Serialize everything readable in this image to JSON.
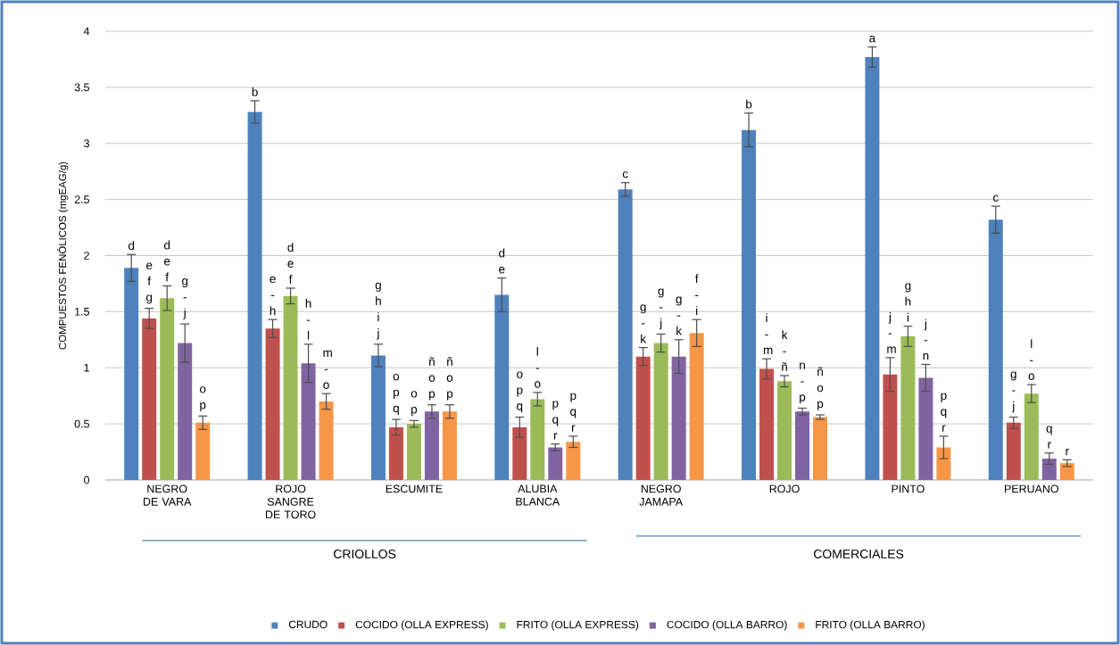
{
  "chart_data": {
    "type": "bar",
    "ylabel": "COMPUESTOS FENÓLICOS (mgEAG/g)",
    "categories": [
      "NEGRO DE VARA",
      "ROJO SANGRE DE TORO",
      "ESCUMITE",
      "ALUBIA BLANCA",
      "NEGRO JAMAPA",
      "ROJO",
      "PINTO",
      "PERUANO"
    ],
    "series": [
      {
        "name": "CRUDO",
        "color": "#4f81bd",
        "values": [
          1.89,
          3.28,
          1.11,
          1.65,
          2.59,
          3.12,
          3.77,
          2.32
        ],
        "errors": [
          0.12,
          0.1,
          0.1,
          0.15,
          0.06,
          0.15,
          0.09,
          0.12
        ],
        "value_labels": [
          "d",
          "b",
          "g h i j",
          "d e",
          "c",
          "b",
          "a",
          "c"
        ]
      },
      {
        "name": "COCIDO (OLLA EXPRESS)",
        "color": "#c0504d",
        "values": [
          1.44,
          1.35,
          0.47,
          0.47,
          1.1,
          0.99,
          0.94,
          0.51
        ],
        "errors": [
          0.09,
          0.08,
          0.07,
          0.09,
          0.08,
          0.09,
          0.15,
          0.05
        ],
        "value_labels": [
          "e f g",
          "e - h",
          "o p q",
          "o p q",
          "g - k",
          "i - m",
          "j - m",
          "g - j"
        ]
      },
      {
        "name": "FRITO (OLLA EXPRESS)",
        "color": "#9bbb59",
        "values": [
          1.62,
          1.64,
          0.5,
          0.72,
          1.22,
          0.88,
          1.28,
          0.77
        ],
        "errors": [
          0.11,
          0.07,
          0.03,
          0.06,
          0.08,
          0.05,
          0.09,
          0.08
        ],
        "value_labels": [
          "d e f",
          "d e f",
          "o p",
          "l - o",
          "g - j",
          "k - ñ",
          "g h i",
          "l - o"
        ]
      },
      {
        "name": "COCIDO (OLLA BARRO)",
        "color": "#8064a2",
        "values": [
          1.22,
          1.04,
          0.61,
          0.29,
          1.1,
          0.61,
          0.91,
          0.19
        ],
        "errors": [
          0.17,
          0.17,
          0.06,
          0.03,
          0.15,
          0.03,
          0.12,
          0.05
        ],
        "value_labels": [
          "g - j",
          "h - l",
          "ñ o p",
          "p q r",
          "g - k",
          "n - p",
          "j - n",
          "q r"
        ]
      },
      {
        "name": "FRITO (OLLA BARRO)",
        "color": "#f79646",
        "values": [
          0.51,
          0.7,
          0.61,
          0.34,
          1.31,
          0.56,
          0.29,
          0.15
        ],
        "errors": [
          0.06,
          0.07,
          0.06,
          0.05,
          0.12,
          0.02,
          0.1,
          0.03
        ],
        "value_labels": [
          "o p",
          "m - o",
          "ñ o p",
          "p q r",
          "f - i",
          "ñ o p",
          "p q r",
          "r"
        ]
      }
    ],
    "ylim": [
      0,
      4
    ],
    "yticks": [
      0,
      0.5,
      1,
      1.5,
      2,
      2.5,
      3,
      3.5,
      4
    ],
    "grid": "y",
    "legend": "bottom",
    "annotations": [
      "CRIOLLOS",
      "COMERCIALES"
    ]
  }
}
